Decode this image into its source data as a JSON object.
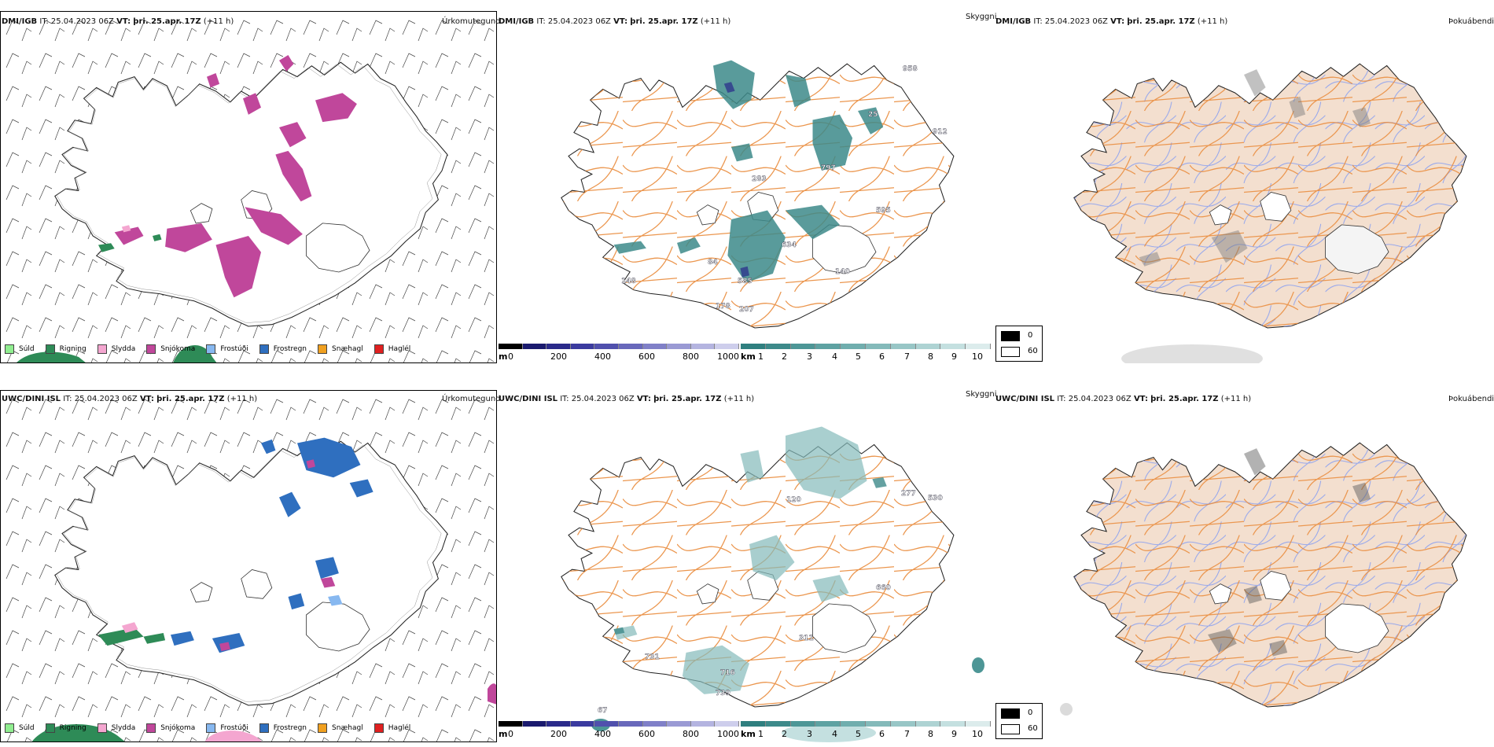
{
  "rows": [
    {
      "model": "DMI/IGB",
      "it_label": "IT:",
      "it_value": "25.04.2023 06Z",
      "vt_label": "VT:",
      "vt_value": "þri. 25.apr. 17Z",
      "offset": "(+11 h)"
    },
    {
      "model": "UWC/DINI ISL",
      "it_label": "IT:",
      "it_value": "25.04.2023 06Z",
      "vt_label": "VT:",
      "vt_value": "þri. 25.apr. 17Z",
      "offset": "(+11 h)"
    }
  ],
  "panel_titles": {
    "precip_type": "Úrkomutegund",
    "visibility": "Skyggni",
    "fog": "Þokuábendi"
  },
  "precip_legend": [
    {
      "label": "Súld",
      "color": "#90ee90"
    },
    {
      "label": "Rigning",
      "color": "#2e8b57"
    },
    {
      "label": "Slydda",
      "color": "#f4a6d0"
    },
    {
      "label": "Snjókoma",
      "color": "#c0479b"
    },
    {
      "label": "Frostúði",
      "color": "#87b8f0"
    },
    {
      "label": "Frostregn",
      "color": "#2f6fbf"
    },
    {
      "label": "Snæhagl",
      "color": "#f0a020"
    },
    {
      "label": "Haglél",
      "color": "#e02020"
    }
  ],
  "elevation_bar": {
    "unit": "m",
    "ticks": [
      "0",
      "200",
      "400",
      "600",
      "800",
      "1000"
    ],
    "colors": [
      "#000000",
      "#1a1a6e",
      "#2a2a8a",
      "#3b3b9f",
      "#5050ad",
      "#6868bb",
      "#8080c8",
      "#9a9ad4",
      "#b4b4e0",
      "#ceceec"
    ]
  },
  "visibility_bar": {
    "unit": "km",
    "ticks": [
      "1",
      "2",
      "3",
      "4",
      "5",
      "6",
      "7",
      "8",
      "9",
      "10"
    ],
    "colors": [
      "#2f7f7f",
      "#3d8a8a",
      "#4d9696",
      "#5ea2a2",
      "#70aeae",
      "#84baba",
      "#98c6c6",
      "#aed3d3",
      "#c4e0e0",
      "#dcecec"
    ]
  },
  "fog_key": {
    "items": [
      {
        "label": "0",
        "color": "#000000"
      },
      {
        "label": "60",
        "color": "#ffffff"
      }
    ]
  },
  "height_labels": {
    "row0": [
      "958",
      "912",
      "797",
      "595",
      "283",
      "84",
      "585",
      "207",
      "140",
      "178",
      "25",
      "634",
      "148"
    ],
    "row1": [
      "277",
      "530",
      "120",
      "660",
      "311",
      "731",
      "716",
      "739",
      "67"
    ]
  }
}
